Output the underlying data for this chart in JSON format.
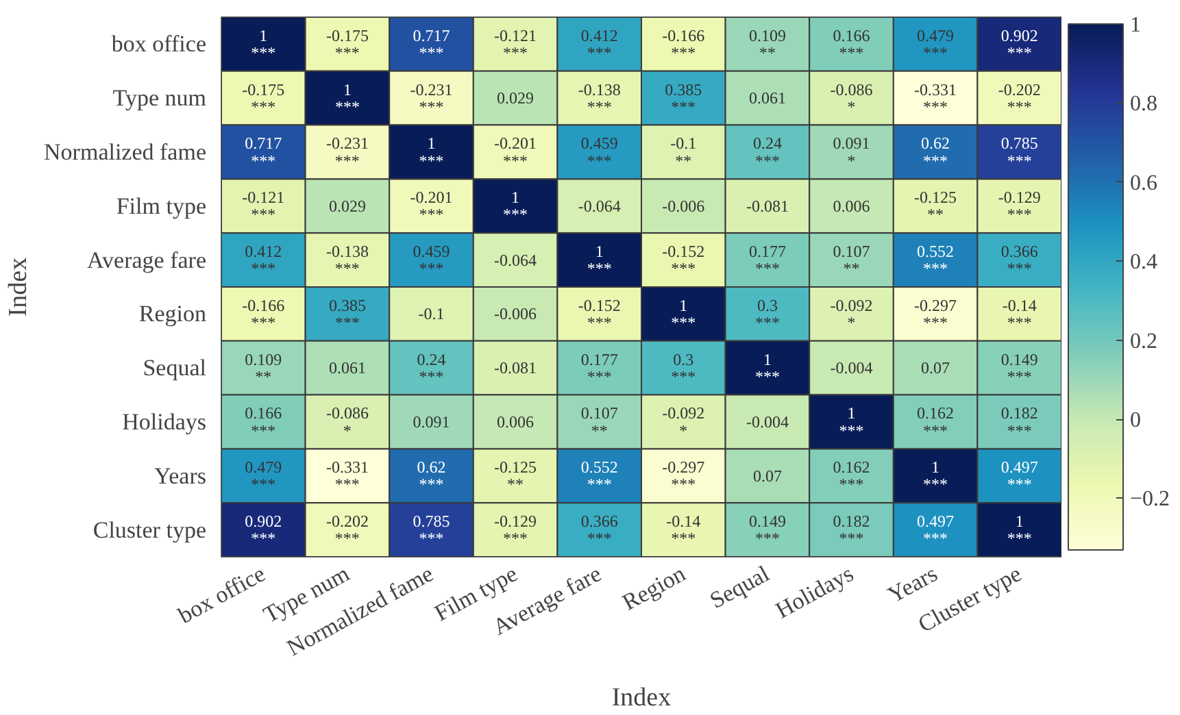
{
  "chart_data": {
    "type": "heatmap",
    "xlabel": "Index",
    "ylabel": "Index",
    "categories": [
      "box office",
      "Type num",
      "Normalized fame",
      "Film type",
      "Average fare",
      "Region",
      "Sequal",
      "Holidays",
      "Years",
      "Cluster type"
    ],
    "y_categories": [
      "box office",
      "Type num",
      "Normalized fame",
      "Film type",
      "Average fare",
      "Region",
      "Sequal",
      "Holidays",
      "Years",
      "Cluster type"
    ],
    "cells": [
      [
        1,
        -0.175,
        0.717,
        -0.121,
        0.412,
        -0.166,
        0.109,
        0.166,
        0.479,
        0.902
      ],
      [
        -0.175,
        1,
        -0.231,
        0.029,
        -0.138,
        0.385,
        0.061,
        -0.086,
        -0.331,
        -0.202
      ],
      [
        0.717,
        -0.231,
        1,
        -0.201,
        0.459,
        -0.1,
        0.24,
        0.091,
        0.62,
        0.785
      ],
      [
        -0.121,
        0.029,
        -0.201,
        1,
        -0.064,
        -0.006,
        -0.081,
        0.006,
        -0.125,
        -0.129
      ],
      [
        0.412,
        -0.138,
        0.459,
        -0.064,
        1,
        -0.152,
        0.177,
        0.107,
        0.552,
        0.366
      ],
      [
        -0.166,
        0.385,
        -0.1,
        -0.006,
        -0.152,
        1,
        0.3,
        -0.092,
        -0.297,
        -0.14
      ],
      [
        0.109,
        0.061,
        0.24,
        -0.081,
        0.177,
        0.3,
        1,
        -0.004,
        0.07,
        0.149
      ],
      [
        0.166,
        -0.086,
        0.091,
        0.006,
        0.107,
        -0.092,
        -0.004,
        1,
        0.162,
        0.182
      ],
      [
        0.479,
        -0.331,
        0.62,
        -0.125,
        0.552,
        -0.297,
        0.07,
        0.162,
        1,
        0.497
      ],
      [
        0.902,
        -0.202,
        0.785,
        -0.129,
        0.366,
        -0.14,
        0.149,
        0.182,
        0.497,
        1
      ]
    ],
    "cell_labels": [
      [
        "1\n***",
        "-0.175\n***",
        "0.717\n***",
        "-0.121\n***",
        "0.412\n***",
        "-0.166\n***",
        "0.109\n**",
        "0.166\n***",
        "0.479\n***",
        "0.902\n***"
      ],
      [
        "-0.175\n***",
        "1\n***",
        "-0.231\n***",
        "0.029",
        "-0.138\n***",
        "0.385\n***",
        "0.061",
        "-0.086\n*",
        "-0.331\n***",
        "-0.202\n***"
      ],
      [
        "0.717\n***",
        "-0.231\n***",
        "1\n***",
        "-0.201\n***",
        "0.459\n***",
        "-0.1\n**",
        "0.24\n***",
        "0.091\n*",
        "0.62\n***",
        "0.785\n***"
      ],
      [
        "-0.121\n***",
        "0.029",
        "-0.201\n***",
        "1\n***",
        "-0.064",
        "-0.006",
        "-0.081",
        "0.006",
        "-0.125\n**",
        "-0.129\n***"
      ],
      [
        "0.412\n***",
        "-0.138\n***",
        "0.459\n***",
        "-0.064",
        "1\n***",
        "-0.152\n***",
        "0.177\n***",
        "0.107\n**",
        "0.552\n***",
        "0.366\n***"
      ],
      [
        "-0.166\n***",
        "0.385\n***",
        "-0.1",
        "-0.006",
        "-0.152\n***",
        "1\n***",
        "0.3\n***",
        "-0.092\n*",
        "-0.297\n***",
        "-0.14\n***"
      ],
      [
        "0.109\n**",
        "0.061",
        "0.24\n***",
        "-0.081",
        "0.177\n***",
        "0.3\n***",
        "1\n***",
        "-0.004",
        "0.07",
        "0.149\n***"
      ],
      [
        "0.166\n***",
        "-0.086\n*",
        "0.091",
        "0.006",
        "0.107\n**",
        "-0.092\n*",
        "-0.004",
        "1\n***",
        "0.162\n***",
        "0.182\n***"
      ],
      [
        "0.479\n***",
        "-0.331\n***",
        "0.62\n***",
        "-0.125\n**",
        "0.552\n***",
        "-0.297\n***",
        "0.07",
        "0.162\n***",
        "1\n***",
        "0.497\n***"
      ],
      [
        "0.902\n***",
        "-0.202\n***",
        "0.785\n***",
        "-0.129\n***",
        "0.366\n***",
        "-0.14\n***",
        "0.149\n***",
        "0.182\n***",
        "0.497\n***",
        "1\n***"
      ]
    ],
    "clim": [
      -0.331,
      1
    ],
    "cticks": [
      -0.2,
      0,
      0.2,
      0.4,
      0.6,
      0.8,
      1
    ]
  }
}
